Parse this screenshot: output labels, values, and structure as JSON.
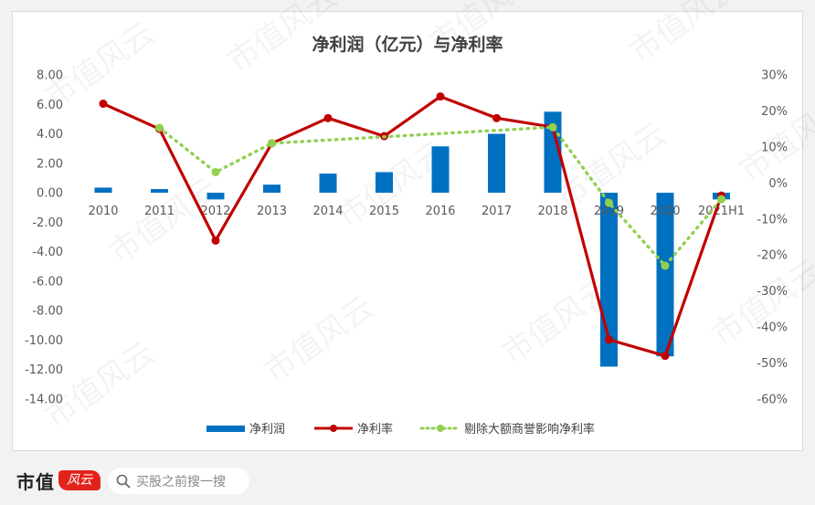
{
  "watermark": {
    "text": "市值风云"
  },
  "footer": {
    "brand_text": "市值",
    "brand_logo_text": "风云",
    "search_placeholder": "买股之前搜一搜"
  },
  "chart_data": {
    "type": "bar",
    "title": "净利润（亿元）与净利率",
    "categories": [
      "2010",
      "2011",
      "2012",
      "2013",
      "2014",
      "2015",
      "2016",
      "2017",
      "2018",
      "2019",
      "2020",
      "2021H1"
    ],
    "series": [
      {
        "name": "净利润",
        "type": "bar",
        "axis": "left",
        "color": "#0070c0",
        "values": [
          0.35,
          0.25,
          -0.45,
          0.55,
          1.3,
          1.4,
          3.15,
          4.0,
          5.5,
          -11.8,
          -11.1,
          -0.45
        ]
      },
      {
        "name": "净利率",
        "type": "line",
        "axis": "right",
        "color": "#c00000",
        "values": [
          22,
          15,
          -16,
          11,
          18,
          13,
          24,
          18,
          15.5,
          -43.5,
          -48,
          -3.5
        ]
      },
      {
        "name": "剔除大额商誉影响净利率",
        "type": "line",
        "style": "dotted",
        "axis": "right",
        "color": "#92d050",
        "values": [
          null,
          15.3,
          3,
          11,
          null,
          null,
          null,
          null,
          15.5,
          -5.5,
          -23,
          -4.5
        ]
      }
    ],
    "y_left": {
      "min": -14,
      "max": 8,
      "step": 2,
      "tick_labels": [
        "8.00",
        "6.00",
        "4.00",
        "2.00",
        "0.00",
        "-2.00",
        "-4.00",
        "-6.00",
        "-8.00",
        "-10.00",
        "-12.00",
        "-14.00"
      ]
    },
    "y_right": {
      "min": -60,
      "max": 30,
      "step": 10,
      "tick_labels": [
        "30%",
        "20%",
        "10%",
        "0%",
        "-10%",
        "-20%",
        "-30%",
        "-40%",
        "-50%",
        "-60%"
      ]
    },
    "grid": false,
    "legend_position": "bottom"
  }
}
